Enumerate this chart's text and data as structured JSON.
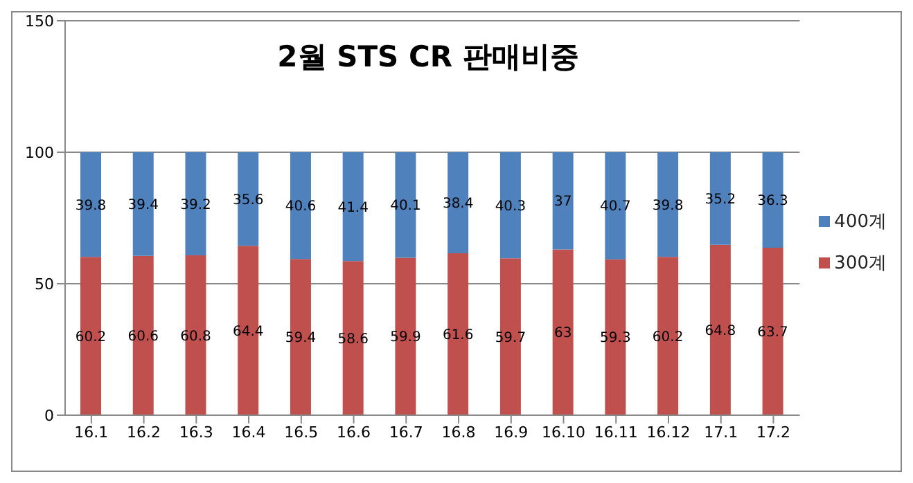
{
  "chart_data": {
    "type": "bar",
    "title": "2월 STS CR 판매비중",
    "stacked": true,
    "categories": [
      "16.1",
      "16.2",
      "16.3",
      "16.4",
      "16.5",
      "16.6",
      "16.7",
      "16.8",
      "16.9",
      "16.10",
      "16.11",
      "16.12",
      "17.1",
      "17.2"
    ],
    "series": [
      {
        "name": "300계",
        "color": "#c0504d",
        "values": [
          60.2,
          60.6,
          60.8,
          64.4,
          59.4,
          58.6,
          59.9,
          61.6,
          59.7,
          63,
          59.3,
          60.2,
          64.8,
          63.7
        ]
      },
      {
        "name": "400계",
        "color": "#4f81bd",
        "values": [
          39.8,
          39.4,
          39.2,
          35.6,
          40.6,
          41.4,
          40.1,
          38.4,
          40.3,
          37,
          40.7,
          39.8,
          35.2,
          36.3
        ]
      }
    ],
    "ylim": [
      0,
      150
    ],
    "yticks": [
      0,
      50,
      100,
      150
    ],
    "grid": "y",
    "legend": "right",
    "data_labels": true
  }
}
